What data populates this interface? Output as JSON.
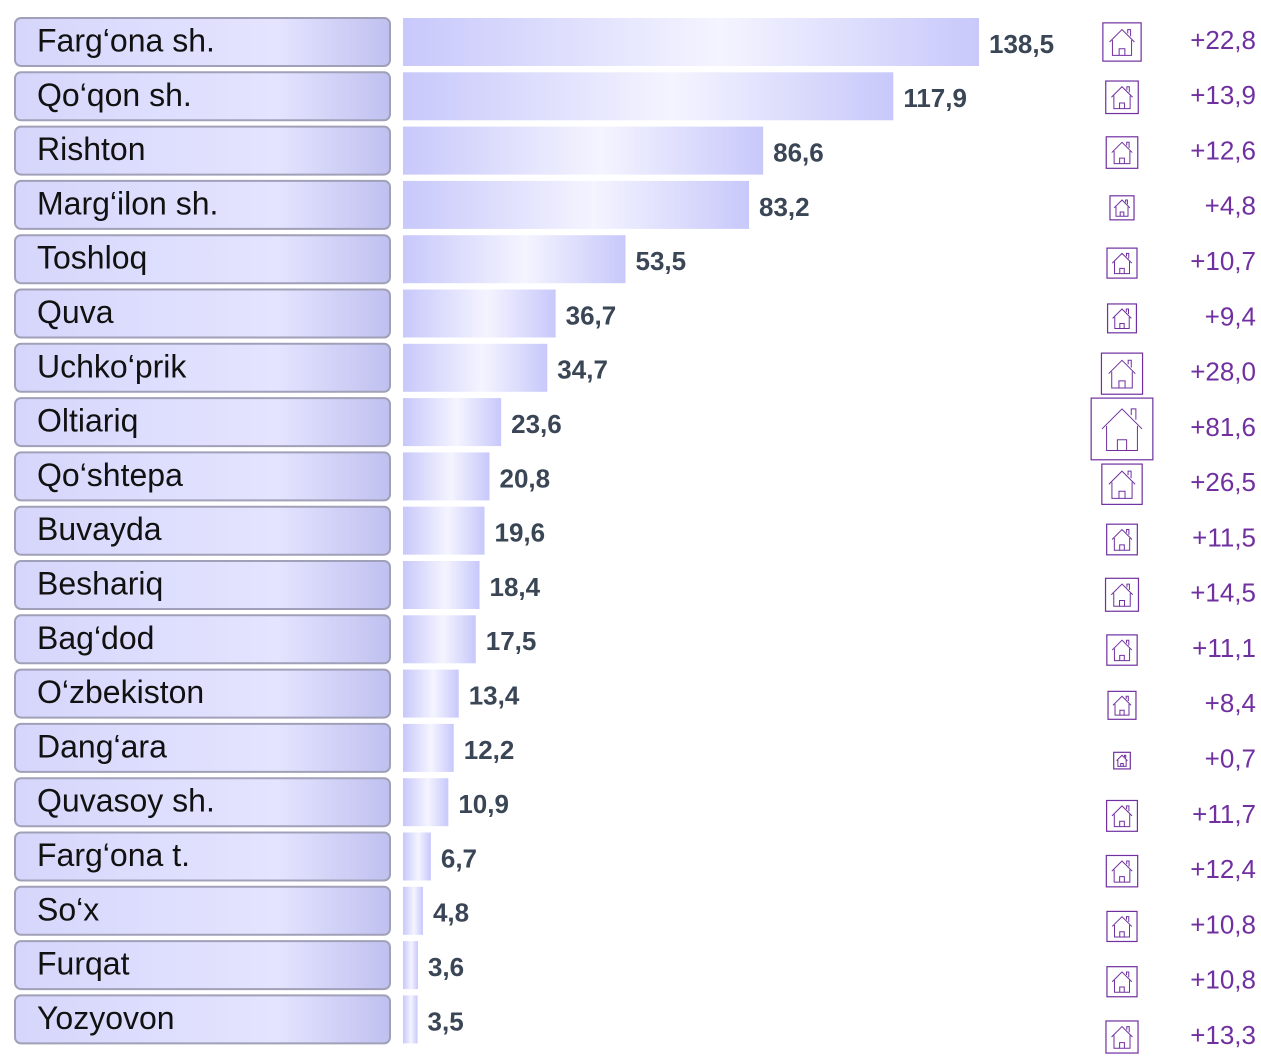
{
  "chart_data": {
    "type": "bar",
    "categories": [
      "Farg‘ona sh.",
      "Qo‘qon sh.",
      "Rishton",
      "Marg‘ilon sh.",
      "Toshloq",
      "Quva",
      "Uchko‘prik",
      "Oltiariq",
      "Qo‘shtepa",
      "Buvayda",
      "Beshariq",
      "Bag‘dod",
      "O‘zbekiston",
      "Dang‘ara",
      "Quvasoy sh.",
      "Farg‘ona t.",
      "So‘x",
      "Furqat",
      "Yozyovon"
    ],
    "values": [
      138.5,
      117.9,
      86.6,
      83.2,
      53.5,
      36.7,
      34.7,
      23.6,
      20.8,
      19.6,
      18.4,
      17.5,
      13.4,
      12.2,
      10.9,
      6.7,
      4.8,
      3.6,
      3.5
    ],
    "value_labels": [
      "138,5",
      "117,9",
      "86,6",
      "83,2",
      "53,5",
      "36,7",
      "34,7",
      "23,6",
      "20,8",
      "19,6",
      "18,4",
      "17,5",
      "13,4",
      "12,2",
      "10,9",
      "6,7",
      "4,8",
      "3,6",
      "3,5"
    ],
    "color": "#c4c4fa",
    "growth_values": [
      22.8,
      13.9,
      12.6,
      4.8,
      10.7,
      9.4,
      28.0,
      81.6,
      26.5,
      11.5,
      14.5,
      11.1,
      8.4,
      0.7,
      11.7,
      12.4,
      10.8,
      10.8,
      13.3
    ],
    "growth_labels": [
      "+22,8",
      "+13,9",
      "+12,6",
      "+4,8",
      "+10,7",
      "+9,4",
      "+28,0",
      "+81,6",
      "+26,5",
      "+11,5",
      "+14,5",
      "+11,1",
      "+8,4",
      "+0,7",
      "+11,7",
      "+12,4",
      "+10,8",
      "+10,8",
      "+13,3"
    ],
    "growth_color": "#7030a0"
  }
}
